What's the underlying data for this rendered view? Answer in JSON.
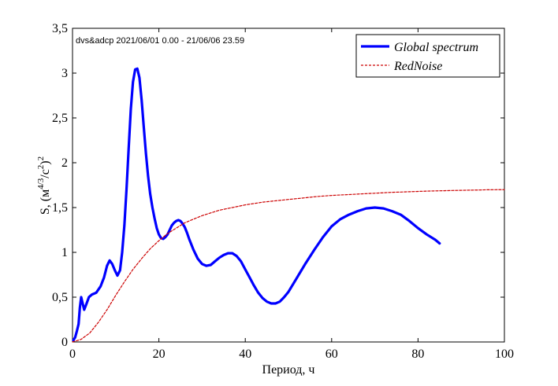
{
  "chart_data": {
    "type": "line",
    "annotation": "dvs&adcp 2021/06/01 0.00 - 21/06/06 23.59",
    "xlabel": "Период, ч",
    "ylabel_main": "S, (м",
    "ylabel_sup1": "4/3",
    "ylabel_mid": "/c",
    "ylabel_sup2": "2",
    "ylabel_end": ")",
    "ylabel_sup3": "2",
    "xlim": [
      0,
      100
    ],
    "ylim": [
      0,
      3.5
    ],
    "x_ticks": [
      0,
      20,
      40,
      60,
      80,
      100
    ],
    "x_tick_labels": [
      "0",
      "20",
      "40",
      "60",
      "80",
      "100"
    ],
    "y_ticks": [
      0,
      0.5,
      1,
      1.5,
      2,
      2.5,
      3,
      3.5
    ],
    "y_tick_labels": [
      "0",
      "0,5",
      "1",
      "1,5",
      "2",
      "2,5",
      "3",
      "3,5"
    ],
    "grid": false,
    "legend_position": "top-right",
    "series": [
      {
        "name": "Global spectrum",
        "color": "#0000ff",
        "style": "solid",
        "x": [
          0.2,
          0.6,
          1.0,
          1.4,
          1.7,
          2.0,
          2.3,
          2.7,
          3.2,
          3.8,
          4.5,
          5.5,
          6.5,
          7.3,
          8.0,
          8.6,
          9.2,
          9.8,
          10.4,
          11.0,
          11.5,
          12.0,
          12.5,
          13.0,
          13.5,
          14.0,
          14.5,
          15.0,
          15.5,
          16.0,
          16.5,
          17.0,
          17.5,
          18.0,
          18.5,
          19.0,
          19.5,
          20.0,
          20.5,
          21.0,
          21.5,
          22.0,
          22.5,
          23.0,
          23.5,
          24.0,
          24.5,
          25.0,
          25.5,
          26.0,
          26.5,
          27.0,
          28.0,
          29.0,
          30.0,
          31.0,
          32.0,
          33.0,
          34.0,
          35.0,
          36.0,
          37.0,
          38.0,
          39.0,
          40.0,
          41.0,
          42.0,
          43.0,
          44.0,
          45.0,
          46.0,
          47.0,
          48.0,
          49.0,
          50.0,
          52.0,
          54.0,
          56.0,
          58.0,
          60.0,
          62.0,
          64.0,
          66.0,
          68.0,
          70.0,
          72.0,
          74.0,
          76.0,
          78.0,
          80.0,
          82.0,
          84.0,
          85.0
        ],
        "y": [
          0.02,
          0.05,
          0.12,
          0.2,
          0.38,
          0.5,
          0.44,
          0.36,
          0.42,
          0.5,
          0.53,
          0.55,
          0.62,
          0.72,
          0.85,
          0.91,
          0.87,
          0.8,
          0.74,
          0.8,
          1.0,
          1.3,
          1.7,
          2.15,
          2.6,
          2.9,
          3.04,
          3.05,
          2.95,
          2.7,
          2.4,
          2.1,
          1.85,
          1.65,
          1.5,
          1.38,
          1.27,
          1.2,
          1.16,
          1.15,
          1.17,
          1.2,
          1.25,
          1.3,
          1.33,
          1.35,
          1.36,
          1.35,
          1.32,
          1.28,
          1.22,
          1.15,
          1.03,
          0.93,
          0.87,
          0.85,
          0.86,
          0.9,
          0.94,
          0.97,
          0.99,
          0.99,
          0.96,
          0.9,
          0.81,
          0.72,
          0.63,
          0.55,
          0.49,
          0.45,
          0.43,
          0.43,
          0.45,
          0.5,
          0.56,
          0.72,
          0.88,
          1.03,
          1.17,
          1.29,
          1.37,
          1.42,
          1.46,
          1.49,
          1.5,
          1.49,
          1.46,
          1.42,
          1.35,
          1.27,
          1.2,
          1.14,
          1.1
        ]
      },
      {
        "name": "RedNoise",
        "color": "#cc0000",
        "style": "dashed",
        "x": [
          0,
          2,
          4,
          6,
          8,
          10,
          12,
          14,
          16,
          18,
          20,
          22,
          24,
          26,
          28,
          30,
          32,
          34,
          36,
          38,
          40,
          42,
          44,
          46,
          48,
          50,
          52,
          54,
          56,
          58,
          60,
          62,
          64,
          66,
          68,
          70,
          72,
          74,
          76,
          78,
          80,
          82,
          84,
          86,
          88,
          90,
          92,
          94,
          96,
          98,
          100
        ],
        "y": [
          0.0,
          0.03,
          0.1,
          0.22,
          0.36,
          0.52,
          0.67,
          0.81,
          0.93,
          1.04,
          1.13,
          1.21,
          1.27,
          1.33,
          1.37,
          1.41,
          1.44,
          1.47,
          1.49,
          1.51,
          1.53,
          1.545,
          1.56,
          1.57,
          1.58,
          1.59,
          1.6,
          1.61,
          1.62,
          1.628,
          1.635,
          1.64,
          1.645,
          1.65,
          1.655,
          1.66,
          1.665,
          1.67,
          1.673,
          1.676,
          1.68,
          1.683,
          1.686,
          1.688,
          1.69,
          1.692,
          1.694,
          1.696,
          1.698,
          1.699,
          1.7
        ]
      }
    ]
  }
}
